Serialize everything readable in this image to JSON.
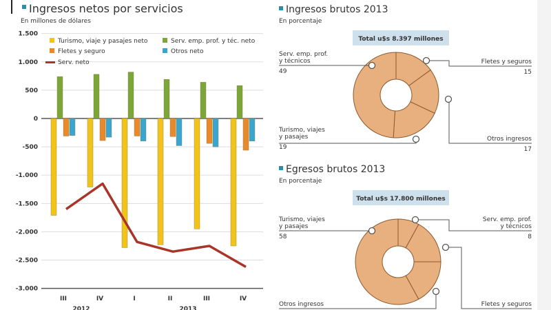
{
  "chart_data": [
    {
      "type": "bar",
      "title": "Ingresos netos por servicios",
      "subtitle": "En millones de dólares",
      "categories": [
        "III",
        "IV",
        "I",
        "II",
        "III",
        "IV"
      ],
      "category_groups": [
        {
          "label": "2012",
          "categories": [
            "III",
            "IV"
          ]
        },
        {
          "label": "2013",
          "categories": [
            "I",
            "II",
            "III",
            "IV"
          ]
        }
      ],
      "ylim": [
        -3000,
        1500
      ],
      "yticks": [
        1500,
        1000,
        500,
        0,
        -500,
        -1000,
        -1500,
        -2000,
        -2500,
        -3000
      ],
      "ytick_labels": [
        "1.500",
        "1.000",
        "500",
        "0",
        "-500",
        "-1.000",
        "-1.500",
        "-2.000",
        "-2.500",
        "-3.000"
      ],
      "grid": true,
      "legend_placement": "top",
      "series": [
        {
          "name": "Turismo, viaje y pasajes neto",
          "type": "bar",
          "color": "#f2c318",
          "values": [
            -1710,
            -1210,
            -2280,
            -2230,
            -1950,
            -2250
          ]
        },
        {
          "name": "Serv. emp. prof. y téc. neto",
          "type": "bar",
          "color": "#7aa63a",
          "values": [
            740,
            780,
            820,
            690,
            640,
            580
          ]
        },
        {
          "name": "Fletes y seguro",
          "type": "bar",
          "color": "#e8892b",
          "values": [
            -310,
            -390,
            -310,
            -320,
            -440,
            -560
          ]
        },
        {
          "name": "Otros neto",
          "type": "bar",
          "color": "#3aa6cf",
          "values": [
            -300,
            -330,
            -400,
            -480,
            -500,
            -400
          ]
        },
        {
          "name": "Serv. neto",
          "type": "line",
          "color": "#a8342a",
          "values": [
            -1600,
            -1150,
            -2180,
            -2350,
            -2250,
            -2620
          ]
        }
      ]
    },
    {
      "type": "pie",
      "title": "Ingresos brutos 2013",
      "subtitle": "En porcentaje",
      "total": "Total u$s 8.397 millones",
      "slices": [
        {
          "label": "Fletes y seguros",
          "value": 15,
          "value_label": "15"
        },
        {
          "label": "Otros ingresos",
          "value": 17,
          "value_label": "17"
        },
        {
          "label": "Turismo, viajes y pasajes",
          "value": 19,
          "value_label": "19"
        },
        {
          "label": "Serv. emp. prof. y técnicos",
          "value": 49,
          "value_label": "49"
        }
      ],
      "color": "#e8b07e"
    },
    {
      "type": "pie",
      "title": "Egresos brutos 2013",
      "subtitle": "En porcentaje",
      "total": "Total u$s 17.800 millones",
      "slices": [
        {
          "label": "Serv. emp. prof. y técnicos",
          "value": 8,
          "value_label": "8"
        },
        {
          "label": "Fletes y seguros",
          "value": 17
        },
        {
          "label": "Otros ingresos",
          "value": 17
        },
        {
          "label": "Turismo, viajes y pasajes",
          "value": 58,
          "value_label": "58"
        }
      ],
      "color": "#e8b07e"
    }
  ],
  "accent_color": "#2a8fa8"
}
